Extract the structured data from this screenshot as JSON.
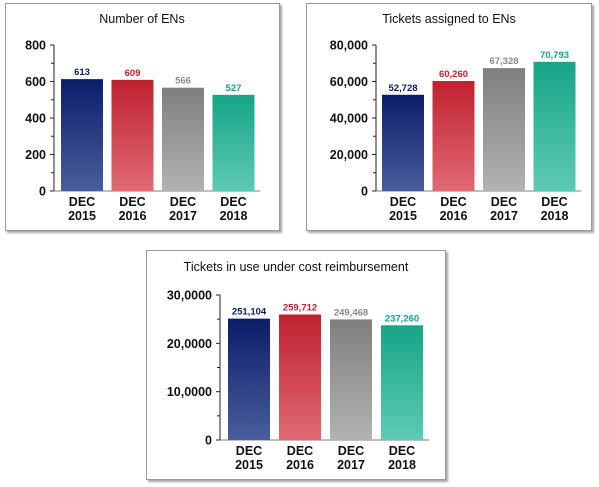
{
  "colors": {
    "navy": [
      "#0b1d6a",
      "#4a5d9c"
    ],
    "red": [
      "#c0212f",
      "#e06a74"
    ],
    "gray": [
      "#7f7f7f",
      "#b2b2b2"
    ],
    "teal": [
      "#16a487",
      "#5ecbb3"
    ],
    "label_navy": "#0b1d6a",
    "label_red": "#c0212f",
    "label_gray": "#8a8a8a",
    "label_teal": "#16a487"
  },
  "chart_data": [
    {
      "type": "bar",
      "title": "Number of ENs",
      "categories": [
        [
          "DEC",
          "2015"
        ],
        [
          "DEC",
          "2016"
        ],
        [
          "DEC",
          "2017"
        ],
        [
          "DEC",
          "2018"
        ]
      ],
      "values": [
        613,
        609,
        566,
        527
      ],
      "data_labels": [
        "613",
        "609",
        "566",
        "527"
      ],
      "ylim": [
        0,
        800
      ],
      "yticks": [
        0,
        200,
        400,
        600,
        800
      ],
      "ytick_labels": [
        "0",
        "200",
        "400",
        "600",
        "800"
      ],
      "bar_colors": [
        "navy",
        "red",
        "gray",
        "teal"
      ]
    },
    {
      "type": "bar",
      "title": "Tickets assigned to ENs",
      "categories": [
        [
          "DEC",
          "2015"
        ],
        [
          "DEC",
          "2016"
        ],
        [
          "DEC",
          "2017"
        ],
        [
          "DEC",
          "2018"
        ]
      ],
      "values": [
        52728,
        60260,
        67328,
        70793
      ],
      "data_labels": [
        "52,728",
        "60,260",
        "67,328",
        "70,793"
      ],
      "ylim": [
        0,
        80000
      ],
      "yticks": [
        0,
        20000,
        40000,
        60000,
        80000
      ],
      "ytick_labels": [
        "0",
        "20,000",
        "40,000",
        "60,000",
        "80,000"
      ],
      "bar_colors": [
        "navy",
        "red",
        "gray",
        "teal"
      ]
    },
    {
      "type": "bar",
      "title": "Tickets in use under cost reimbursement",
      "categories": [
        [
          "DEC",
          "2015"
        ],
        [
          "DEC",
          "2016"
        ],
        [
          "DEC",
          "2017"
        ],
        [
          "DEC",
          "2018"
        ]
      ],
      "values": [
        251104,
        259712,
        249468,
        237260
      ],
      "data_labels": [
        "251,104",
        "259,712",
        "249,468",
        "237,260"
      ],
      "ylim": [
        0,
        300000
      ],
      "yticks": [
        0,
        100000,
        200000,
        300000
      ],
      "ytick_labels": [
        "0",
        "10,0000",
        "20,0000",
        "30,0000"
      ],
      "bar_colors": [
        "navy",
        "red",
        "gray",
        "teal"
      ]
    }
  ]
}
